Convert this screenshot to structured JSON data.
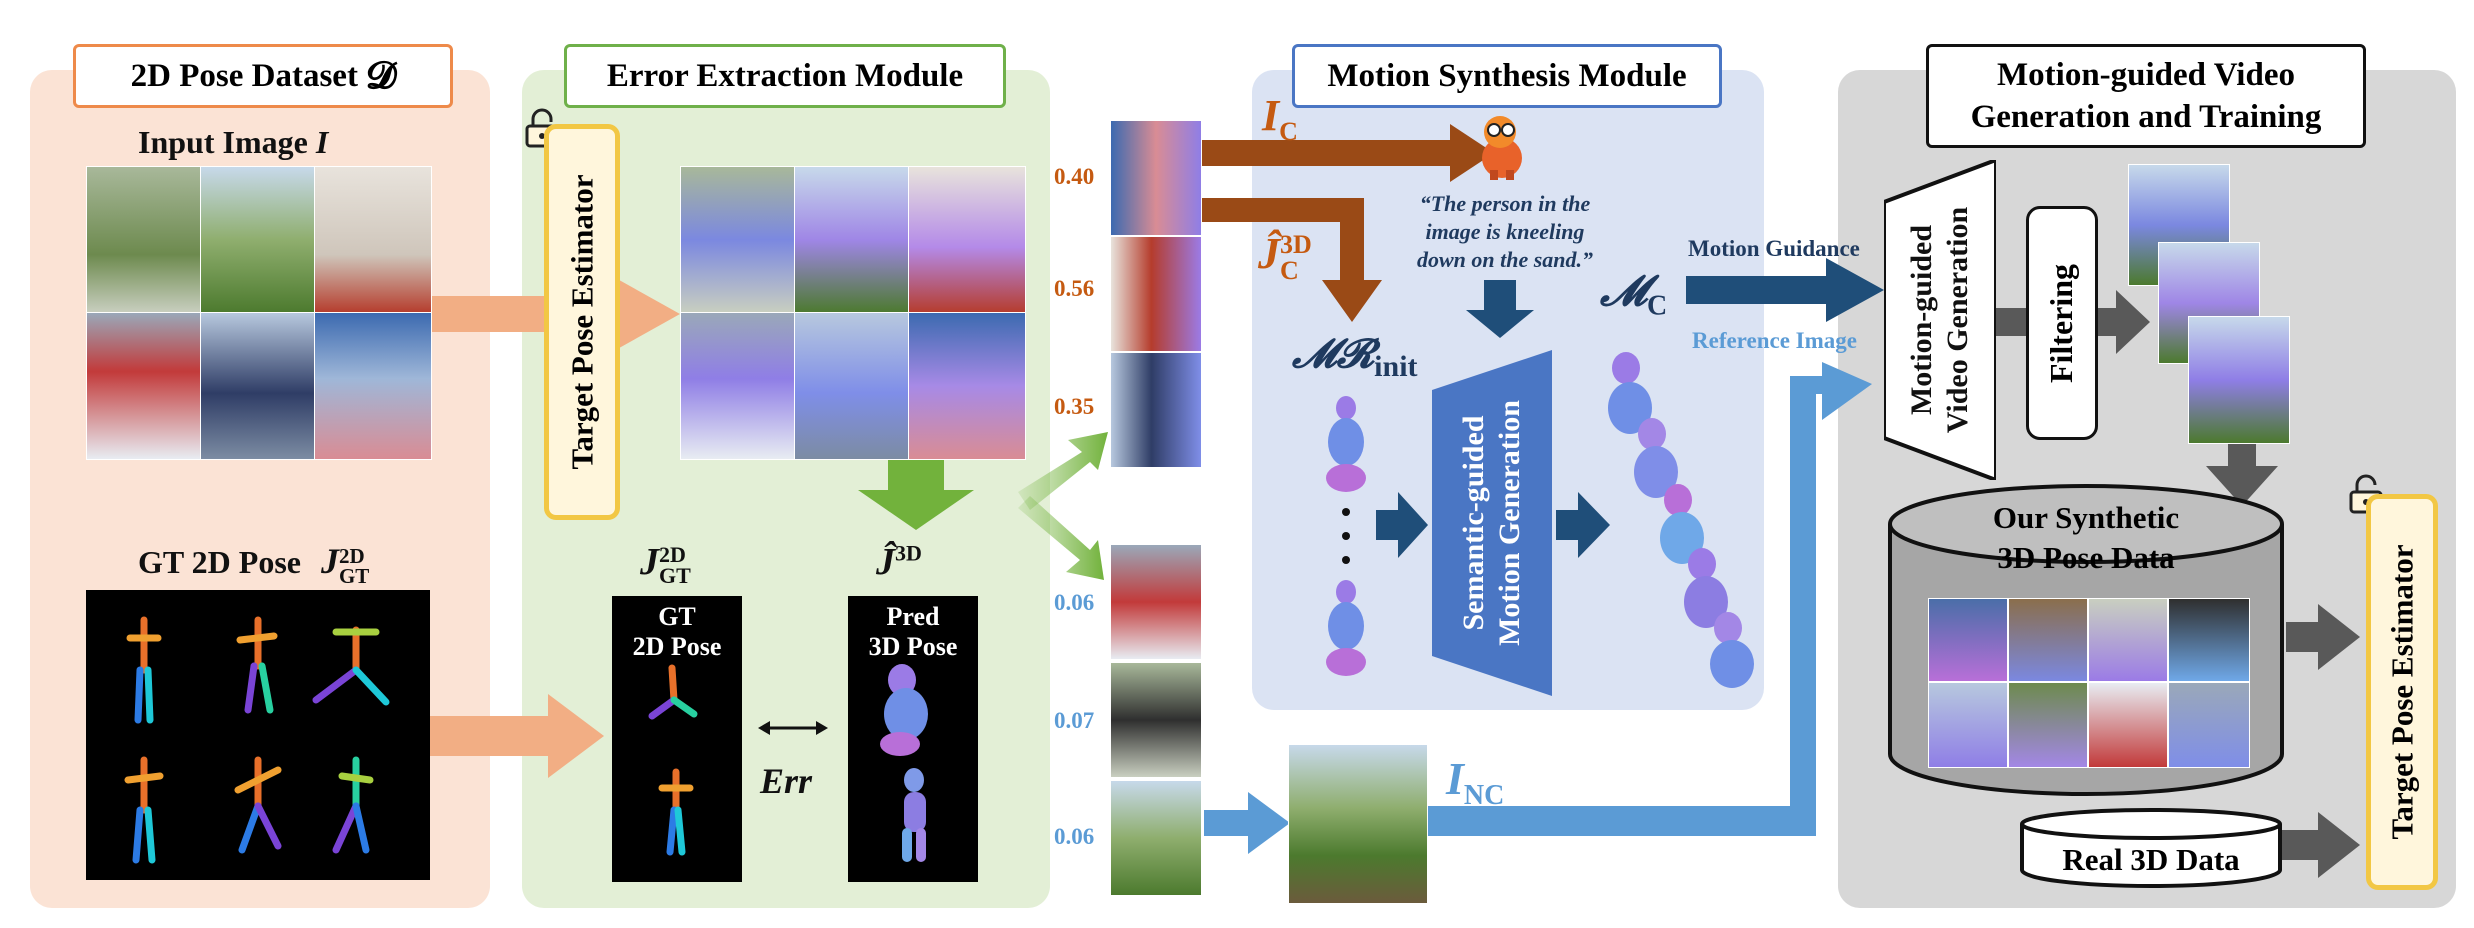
{
  "colors": {
    "dataset_bg": "#fbe3d5",
    "dataset_border": "#ee8a4a",
    "error_bg": "#e3efd6",
    "error_border": "#6fb04a",
    "motion_bg": "#dbe3f3",
    "motion_border": "#4a76c4",
    "video_bg": "#d7d7d7",
    "orange_arrow": "#f2ae84",
    "brown_arrow": "#9a4a16",
    "green_arrow": "#72b23c",
    "navy_arrow": "#1f4e79",
    "blue_arrow": "#5b9bd5",
    "gray_arrow": "#595959",
    "estimator_border": "#f2c744",
    "estimator_bg": "#fff6dc",
    "score_orange": "#c55a11",
    "score_blue": "#5b9bd5"
  },
  "dataset": {
    "title": "2D Pose Dataset",
    "title_symbol": "𝓓",
    "input_image_label": "Input Image",
    "input_image_symbol": "I",
    "gt_pose_label": "GT 2D Pose",
    "gt_pose_symbol": "J",
    "gt_pose_sup": "2D",
    "gt_pose_sub": "GT"
  },
  "error_module": {
    "title": "Error Extraction Module",
    "estimator_label": "Target Pose Estimator",
    "gt_symbol": "J",
    "gt_sup": "2D",
    "gt_sub": "GT",
    "gt_box_text": [
      "GT",
      "2D Pose"
    ],
    "pred_symbol": "Ĵ",
    "pred_sup": "3D",
    "pred_box_text": [
      "Pred",
      "3D Pose"
    ],
    "err_label": "Err"
  },
  "scores": {
    "challenging": [
      "0.40",
      "0.56",
      "0.35"
    ],
    "non_challenging": [
      "0.06",
      "0.07",
      "0.06"
    ]
  },
  "motion_module": {
    "title": "Motion Synthesis Module",
    "ic_label": "I",
    "ic_sub": "C",
    "jc_label": "Ĵ",
    "jc_sup": "3D",
    "jc_sub": "C",
    "caption": [
      "“The person in the",
      "image is kneeling",
      "down on the sand.”"
    ],
    "mr_init_label": "𝓜𝓡",
    "mr_init_sub": "init",
    "generator_label": [
      "Semantic-guided",
      "Motion Generation"
    ],
    "mc_label": "𝓜",
    "mc_sub": "C",
    "motion_guidance": "Motion Guidance",
    "reference_image": "Reference Image",
    "inc_label": "I",
    "inc_sub": "NC"
  },
  "video_module": {
    "title": [
      "Motion-guided Video",
      "Generation and Training"
    ],
    "generator_label": [
      "Motion-guided",
      "Video Generation"
    ],
    "filtering_label": "Filtering",
    "synthetic_label": [
      "Our Synthetic",
      "3D Pose Data"
    ],
    "real_label": "Real 3D Data",
    "estimator_label": "Target Pose Estimator"
  }
}
